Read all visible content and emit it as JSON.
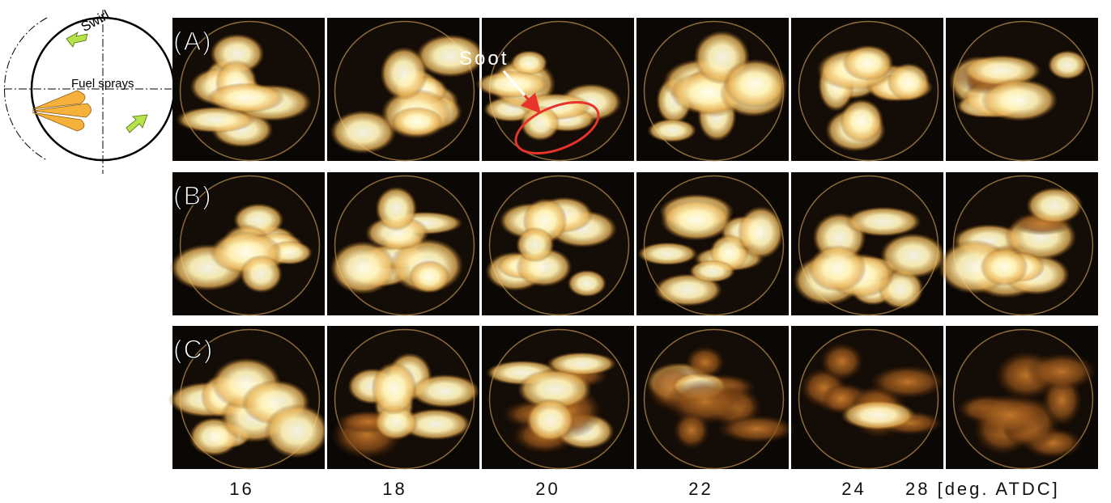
{
  "schematic": {
    "swirl_label": "Swirl",
    "sprays_label": "Fuel sprays"
  },
  "rows": [
    {
      "label": "(A)"
    },
    {
      "label": "(B)"
    },
    {
      "label": "(C)"
    }
  ],
  "annotation": {
    "label": "Soot"
  },
  "crank_angles": [
    "16",
    "18",
    "20",
    "22",
    "24",
    "28 [deg. ATDC]"
  ]
}
